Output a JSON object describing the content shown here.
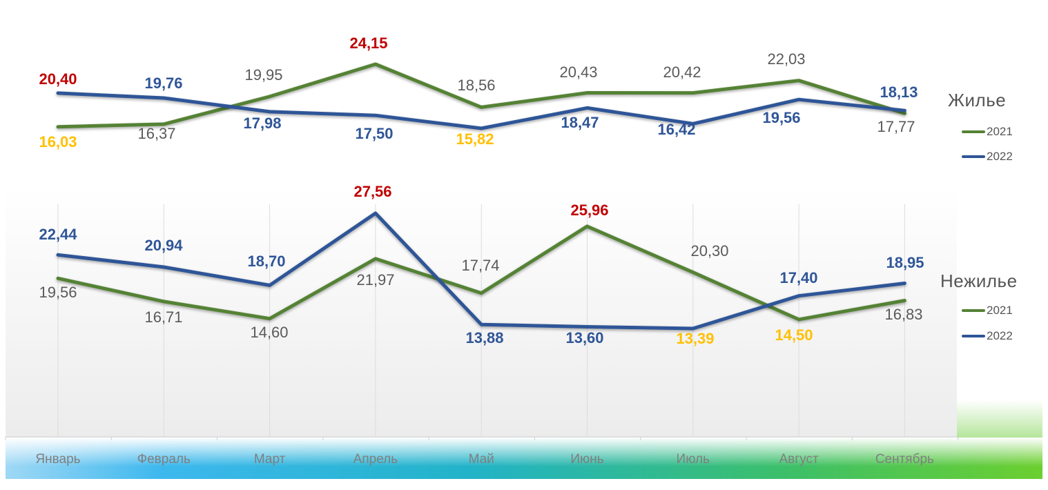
{
  "colors": {
    "series_2021": "#548235",
    "series_2022": "#2f5597",
    "label_max": "#c00000",
    "label_min": "#ffc000",
    "label_grey": "#595959",
    "label_blue": "#2f5597",
    "axis_text": "#7f7f7f"
  },
  "chart_data": [
    {
      "type": "line",
      "title": "Жилье",
      "categories": [
        "Январь",
        "Февраль",
        "Март",
        "Апрель",
        "Май",
        "Июнь",
        "Июль",
        "Август",
        "Сентябрь"
      ],
      "series": [
        {
          "name": "2021",
          "values": [
            16.03,
            16.37,
            19.95,
            24.15,
            18.56,
            20.43,
            20.42,
            22.03,
            17.77
          ],
          "labels": [
            "16,03",
            "16,37",
            "19,95",
            "24,15",
            "18,56",
            "20,43",
            "20,42",
            "22,03",
            "17,77"
          ]
        },
        {
          "name": "2022",
          "values": [
            20.4,
            19.76,
            17.98,
            17.5,
            15.82,
            18.47,
            16.42,
            19.56,
            18.13
          ],
          "labels": [
            "20,40",
            "19,76",
            "17,98",
            "17,50",
            "15,82",
            "18,47",
            "16,42",
            "19,56",
            "18,13"
          ]
        }
      ],
      "legend": {
        "title": "Жилье",
        "items": [
          "2021",
          "2022"
        ],
        "placement": "right"
      }
    },
    {
      "type": "line",
      "title": "Нежилье",
      "categories": [
        "Январь",
        "Февраль",
        "Март",
        "Апрель",
        "Май",
        "Июнь",
        "Июль",
        "Август",
        "Сентябрь"
      ],
      "series": [
        {
          "name": "2021",
          "values": [
            19.56,
            16.71,
            14.6,
            21.97,
            17.74,
            25.96,
            20.3,
            14.5,
            16.83
          ],
          "labels": [
            "19,56",
            "16,71",
            "14,60",
            "21,97",
            "17,74",
            "25,96",
            "20,30",
            "14,50",
            "16,83"
          ]
        },
        {
          "name": "2022",
          "values": [
            22.44,
            20.94,
            18.7,
            27.56,
            13.88,
            13.6,
            13.39,
            17.4,
            18.95
          ],
          "labels": [
            "22,44",
            "20,94",
            "18,70",
            "27,56",
            "13,88",
            "13,60",
            "13,39",
            "17,40",
            "18,95"
          ]
        }
      ],
      "legend": {
        "title": "Нежилье",
        "items": [
          "2021",
          "2022"
        ],
        "placement": "right"
      }
    }
  ]
}
